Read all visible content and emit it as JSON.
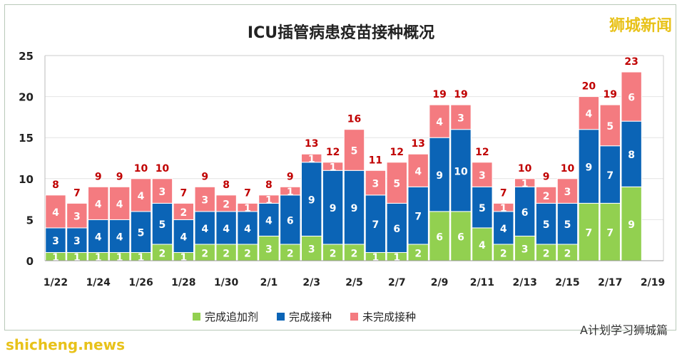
{
  "watermark": "狮城新闻",
  "footer_watermark": "A计划学习狮城篇",
  "site_watermark": "shicheng.news",
  "chart_data": {
    "type": "bar",
    "stacked": true,
    "title": "ICU插管病患疫苗接种概况",
    "xlabel": "",
    "ylabel": "",
    "ylim": [
      0,
      25
    ],
    "yticks": [
      0,
      5,
      10,
      15,
      20,
      25
    ],
    "grid": true,
    "legend_position": "bottom",
    "categories": [
      "1/22",
      "1/23",
      "1/24",
      "1/25",
      "1/26",
      "1/27",
      "1/28",
      "1/29",
      "1/30",
      "1/31",
      "2/1",
      "2/2",
      "2/3",
      "2/4",
      "2/5",
      "2/6",
      "2/7",
      "2/8",
      "2/9",
      "2/10",
      "2/11",
      "2/12",
      "2/13",
      "2/14",
      "2/15",
      "2/16",
      "2/17",
      "2/18",
      "2/19"
    ],
    "xtick_labels": [
      "1/22",
      "1/24",
      "1/26",
      "1/28",
      "1/30",
      "2/1",
      "2/3",
      "2/5",
      "2/7",
      "2/9",
      "2/11",
      "2/13",
      "2/15",
      "2/17",
      "2/19"
    ],
    "series": [
      {
        "name": "完成追加剂",
        "color": "#92d050",
        "values": [
          1,
          1,
          1,
          1,
          1,
          2,
          1,
          2,
          2,
          2,
          3,
          2,
          3,
          2,
          2,
          1,
          1,
          2,
          6,
          6,
          4,
          2,
          3,
          2,
          2,
          7,
          7,
          9,
          null
        ]
      },
      {
        "name": "完成接种",
        "color": "#0b64b6",
        "values": [
          3,
          3,
          4,
          4,
          5,
          5,
          4,
          4,
          4,
          4,
          4,
          6,
          9,
          9,
          9,
          7,
          6,
          7,
          9,
          10,
          5,
          4,
          6,
          5,
          5,
          9,
          7,
          8,
          null
        ]
      },
      {
        "name": "未完成接种",
        "color": "#f47b80",
        "values": [
          4,
          3,
          4,
          4,
          4,
          3,
          2,
          3,
          2,
          1,
          1,
          1,
          1,
          1,
          5,
          3,
          5,
          4,
          4,
          3,
          3,
          1,
          1,
          2,
          3,
          4,
          5,
          6,
          null
        ]
      }
    ],
    "totals": [
      8,
      7,
      9,
      9,
      10,
      10,
      7,
      9,
      8,
      7,
      8,
      9,
      13,
      12,
      16,
      11,
      12,
      13,
      19,
      19,
      12,
      7,
      10,
      9,
      10,
      20,
      19,
      23,
      null
    ],
    "total_label_color": "#c00000"
  }
}
